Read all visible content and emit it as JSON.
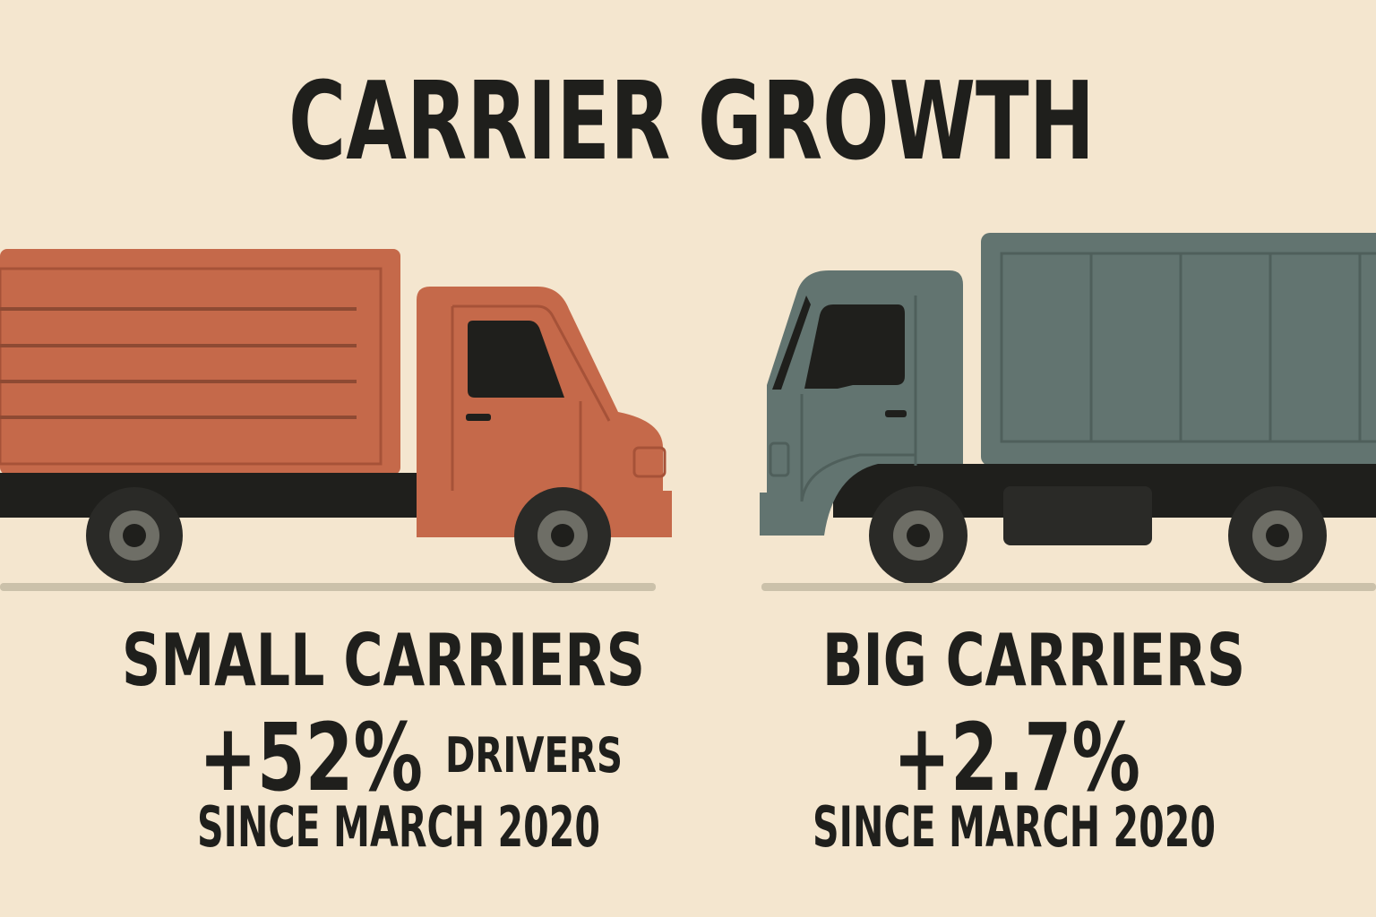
{
  "header": {
    "title": "CARRIER GROWTH"
  },
  "panels": [
    {
      "heading": "SMALL CARRIERS",
      "stat": "+52%",
      "unit": "DRIVERS",
      "since": "SINCE MARCH 2020"
    },
    {
      "heading": "BIG CARRIERS",
      "stat": "+2.7%",
      "since": "SINCE MARCH 2020"
    }
  ]
}
